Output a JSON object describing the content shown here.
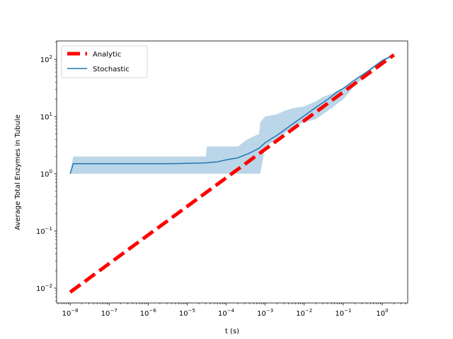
{
  "chart_data": {
    "type": "line",
    "title": "",
    "xlabel": "t (s)",
    "ylabel": "Average Total Enzymes in Tubule",
    "xscale": "log",
    "yscale": "log",
    "xlim": [
      4.5e-09,
      4.5
    ],
    "ylim": [
      0.0055,
      210
    ],
    "xticks": [
      1e-08,
      1e-07,
      1e-06,
      1e-05,
      0.0001,
      0.001,
      0.01,
      0.1,
      1
    ],
    "xtick_labels": [
      {
        "base": "10",
        "exp": "−8"
      },
      {
        "base": "10",
        "exp": "−7"
      },
      {
        "base": "10",
        "exp": "−6"
      },
      {
        "base": "10",
        "exp": "−5"
      },
      {
        "base": "10",
        "exp": "−4"
      },
      {
        "base": "10",
        "exp": "−3"
      },
      {
        "base": "10",
        "exp": "−2"
      },
      {
        "base": "10",
        "exp": "−1"
      },
      {
        "base": "10",
        "exp": "0"
      }
    ],
    "yticks": [
      0.01,
      0.1,
      1,
      10,
      100
    ],
    "ytick_labels": [
      {
        "base": "10",
        "exp": "−2"
      },
      {
        "base": "10",
        "exp": "−1"
      },
      {
        "base": "10",
        "exp": "0"
      },
      {
        "base": "10",
        "exp": "1"
      },
      {
        "base": "10",
        "exp": "2"
      }
    ],
    "legend": {
      "position": "upper-left"
    },
    "series": [
      {
        "name": "Analytic",
        "style": "dashed",
        "color": "#ff0000",
        "x": [
          1e-08,
          2
        ],
        "y": [
          0.0085,
          120
        ]
      },
      {
        "name": "Stochastic",
        "style": "solid",
        "color": "#1f77b4",
        "x": [
          1e-08,
          1.2e-08,
          3e-06,
          1e-05,
          3e-05,
          6e-05,
          0.0001,
          0.0002,
          0.0004,
          0.0007,
          0.001,
          0.002,
          0.004,
          0.007,
          0.01,
          0.02,
          0.04,
          0.07,
          0.1,
          0.2,
          0.4,
          0.7,
          1,
          2
        ],
        "y": [
          1.0,
          1.5,
          1.5,
          1.52,
          1.55,
          1.62,
          1.75,
          1.9,
          2.3,
          2.8,
          3.5,
          4.7,
          6.6,
          8.7,
          10.3,
          14.5,
          20,
          27,
          31,
          44,
          60,
          80,
          95,
          120
        ]
      }
    ],
    "band": {
      "name": "",
      "color": "#1f77b4",
      "alpha": 0.3,
      "x": [
        1e-08,
        1.2e-08,
        3e-05,
        3.2e-05,
        0.0002,
        0.00035,
        0.0007,
        0.00075,
        0.001,
        0.002,
        0.003,
        0.005,
        0.01,
        0.02,
        0.03,
        0.05,
        0.1,
        0.2,
        0.4,
        1,
        2
      ],
      "upper": [
        1.0,
        2.0,
        2.0,
        3.0,
        3.0,
        4.0,
        5.0,
        8.0,
        10.0,
        11.0,
        12.5,
        14.0,
        15.0,
        18.5,
        22.0,
        25.0,
        32.0,
        45.0,
        62.0,
        100.0,
        125.0
      ],
      "lower": [
        1.0,
        1.0,
        1.0,
        1.0,
        1.0,
        1.0,
        1.0,
        1.0,
        3.0,
        4.0,
        5.0,
        6.5,
        8.0,
        9.0,
        11.0,
        14.0,
        20.0,
        35.0,
        55.0,
        90.0,
        115.0
      ]
    }
  }
}
